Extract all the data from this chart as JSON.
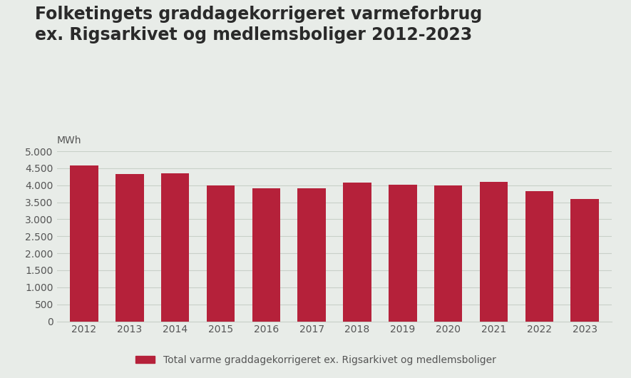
{
  "title_line1": "Folketingets graddagekorrigeret varmeforbrug",
  "title_line2": "ex. Rigsarkivet og medlemsboliger 2012-2023",
  "ylabel": "MWh",
  "bar_color": "#b5213a",
  "background_color": "#e8ece8",
  "years": [
    2012,
    2013,
    2014,
    2015,
    2016,
    2017,
    2018,
    2019,
    2020,
    2021,
    2022,
    2023
  ],
  "values": [
    4580,
    4320,
    4360,
    4000,
    3900,
    3900,
    4080,
    4020,
    4000,
    4100,
    3820,
    3600
  ],
  "ylim": [
    0,
    5000
  ],
  "yticks": [
    0,
    500,
    1000,
    1500,
    2000,
    2500,
    3000,
    3500,
    4000,
    4500,
    5000
  ],
  "legend_label": "Total varme graddagekorrigeret ex. Rigsarkivet og medlemsboliger",
  "grid_color": "#c8d0c8",
  "text_color": "#555555",
  "title_fontsize": 17,
  "axis_fontsize": 10,
  "legend_fontsize": 10
}
